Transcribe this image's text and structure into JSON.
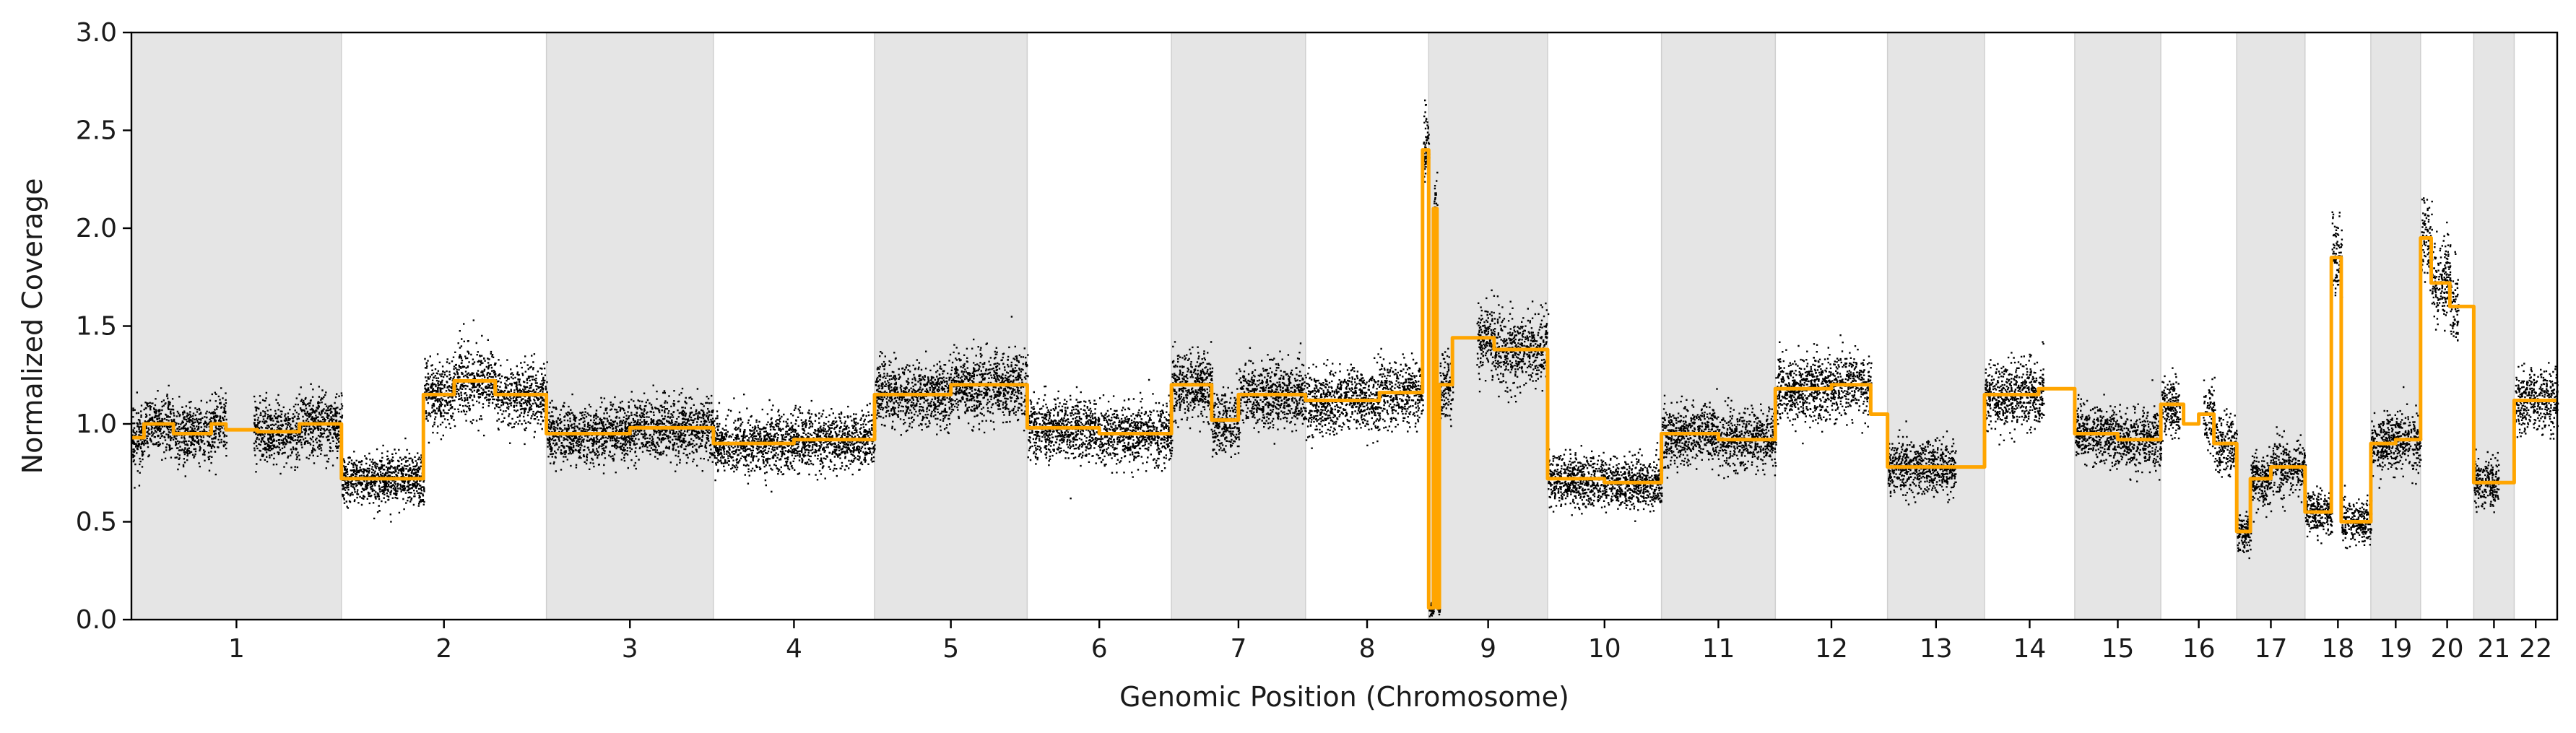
{
  "chart_data": {
    "type": "scatter",
    "title": "",
    "xlabel": "Genomic Position (Chromosome)",
    "ylabel": "Normalized Coverage",
    "ylim": [
      0,
      3.0
    ],
    "yticks": [
      "0.0",
      "0.5",
      "1.0",
      "1.5",
      "2.0",
      "2.5",
      "3.0"
    ],
    "grid": false,
    "legend": "none",
    "colors": {
      "points": "#000000",
      "segments": "#FFA500",
      "band": "#e5e5e5"
    },
    "chromosomes": [
      {
        "name": "1",
        "length": 249,
        "level": 1.0,
        "segments": [
          [
            0,
            0.06,
            0.93
          ],
          [
            0.06,
            0.2,
            1.0
          ],
          [
            0.2,
            0.38,
            0.95
          ],
          [
            0.38,
            0.45,
            1.0
          ],
          [
            0.45,
            0.6,
            0.97
          ],
          [
            0.6,
            0.8,
            0.96
          ],
          [
            0.8,
            1.0,
            1.0
          ]
        ],
        "gaps": [
          [
            0.45,
            0.58
          ]
        ]
      },
      {
        "name": "2",
        "length": 243,
        "level": 1.0,
        "segments": [
          [
            0,
            0.4,
            0.72
          ],
          [
            0.4,
            0.55,
            1.15
          ],
          [
            0.55,
            0.75,
            1.22
          ],
          [
            0.75,
            1.0,
            1.15
          ]
        ],
        "gaps": []
      },
      {
        "name": "3",
        "length": 198,
        "level": 1.0,
        "segments": [
          [
            0,
            0.5,
            0.95
          ],
          [
            0.5,
            1.0,
            0.98
          ]
        ],
        "gaps": []
      },
      {
        "name": "4",
        "length": 191,
        "level": 1.0,
        "segments": [
          [
            0,
            0.5,
            0.9
          ],
          [
            0.5,
            1.0,
            0.92
          ]
        ],
        "gaps": []
      },
      {
        "name": "5",
        "length": 181,
        "level": 1.0,
        "segments": [
          [
            0,
            0.5,
            1.15
          ],
          [
            0.5,
            1.0,
            1.2
          ]
        ],
        "gaps": []
      },
      {
        "name": "6",
        "length": 171,
        "level": 1.0,
        "segments": [
          [
            0,
            0.5,
            0.98
          ],
          [
            0.5,
            1.0,
            0.95
          ]
        ],
        "gaps": []
      },
      {
        "name": "7",
        "length": 159,
        "level": 1.0,
        "segments": [
          [
            0,
            0.3,
            1.2
          ],
          [
            0.3,
            0.5,
            1.02
          ],
          [
            0.5,
            1.0,
            1.15
          ]
        ],
        "gaps": []
      },
      {
        "name": "8",
        "length": 146,
        "level": 1.0,
        "segments": [
          [
            0,
            0.6,
            1.12
          ],
          [
            0.6,
            0.95,
            1.16
          ],
          [
            0.95,
            1.0,
            2.4
          ]
        ],
        "gaps": []
      },
      {
        "name": "9",
        "length": 141,
        "level": 1.0,
        "segments": [
          [
            0,
            0.04,
            0.06
          ],
          [
            0.04,
            0.07,
            2.1
          ],
          [
            0.07,
            0.09,
            0.06
          ],
          [
            0.09,
            0.2,
            1.2
          ],
          [
            0.2,
            0.55,
            1.44
          ],
          [
            0.55,
            1.0,
            1.38
          ]
        ],
        "gaps": [
          [
            0.2,
            0.4
          ]
        ]
      },
      {
        "name": "10",
        "length": 135,
        "level": 1.0,
        "segments": [
          [
            0,
            0.5,
            0.72
          ],
          [
            0.5,
            1.0,
            0.7
          ]
        ],
        "gaps": []
      },
      {
        "name": "11",
        "length": 135,
        "level": 1.0,
        "segments": [
          [
            0,
            0.5,
            0.95
          ],
          [
            0.5,
            1.0,
            0.92
          ]
        ],
        "gaps": []
      },
      {
        "name": "12",
        "length": 133,
        "level": 1.0,
        "segments": [
          [
            0,
            0.5,
            1.18
          ],
          [
            0.5,
            0.85,
            1.2
          ],
          [
            0.85,
            1.0,
            1.05
          ]
        ],
        "gaps": [
          [
            0.85,
            1.0
          ]
        ]
      },
      {
        "name": "13",
        "length": 115,
        "level": 1.0,
        "segments": [
          [
            0,
            0.7,
            0.78
          ],
          [
            0.7,
            1.0,
            0.78
          ]
        ],
        "gaps": [
          [
            0.7,
            1.0
          ]
        ]
      },
      {
        "name": "14",
        "length": 107,
        "level": 1.0,
        "segments": [
          [
            0,
            0.6,
            1.15
          ],
          [
            0.6,
            1.0,
            1.18
          ]
        ],
        "gaps": [
          [
            0.65,
            1.0
          ]
        ]
      },
      {
        "name": "15",
        "length": 102,
        "level": 1.0,
        "segments": [
          [
            0,
            0.5,
            0.95
          ],
          [
            0.5,
            1.0,
            0.92
          ]
        ],
        "gaps": []
      },
      {
        "name": "16",
        "length": 90,
        "level": 1.0,
        "segments": [
          [
            0,
            0.3,
            1.1
          ],
          [
            0.3,
            0.5,
            1.0
          ],
          [
            0.5,
            0.7,
            1.05
          ],
          [
            0.7,
            1.0,
            0.9
          ]
        ],
        "gaps": [
          [
            0.25,
            0.55
          ]
        ]
      },
      {
        "name": "17",
        "length": 81,
        "level": 1.0,
        "segments": [
          [
            0,
            0.2,
            0.45
          ],
          [
            0.2,
            0.5,
            0.72
          ],
          [
            0.5,
            1.0,
            0.78
          ]
        ],
        "gaps": []
      },
      {
        "name": "18",
        "length": 78,
        "level": 1.0,
        "segments": [
          [
            0,
            0.4,
            0.55
          ],
          [
            0.4,
            0.55,
            1.85
          ],
          [
            0.55,
            1.0,
            0.5
          ]
        ],
        "gaps": []
      },
      {
        "name": "19",
        "length": 59,
        "level": 1.0,
        "segments": [
          [
            0,
            0.5,
            0.9
          ],
          [
            0.5,
            1.0,
            0.92
          ]
        ],
        "gaps": []
      },
      {
        "name": "20",
        "length": 63,
        "level": 1.0,
        "segments": [
          [
            0,
            0.2,
            1.95
          ],
          [
            0.2,
            0.55,
            1.72
          ],
          [
            0.55,
            1.0,
            1.6
          ]
        ],
        "gaps": [
          [
            0.7,
            1.0
          ]
        ]
      },
      {
        "name": "21",
        "length": 48,
        "level": 1.0,
        "segments": [
          [
            0,
            1.0,
            0.7
          ]
        ],
        "gaps": [
          [
            0.6,
            1.0
          ]
        ]
      },
      {
        "name": "22",
        "length": 51,
        "level": 1.0,
        "segments": [
          [
            0,
            1.0,
            1.12
          ]
        ],
        "gaps": []
      }
    ]
  }
}
